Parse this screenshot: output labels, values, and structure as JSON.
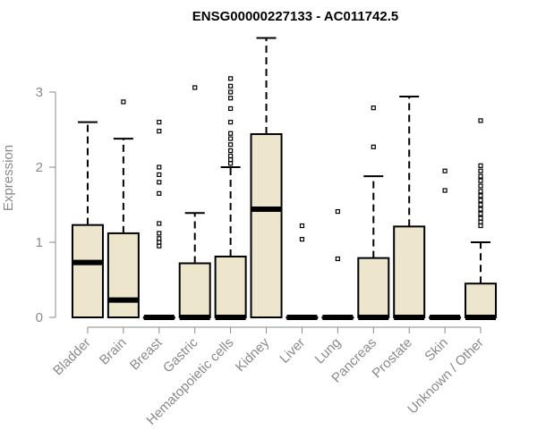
{
  "chart_data": {
    "type": "boxplot",
    "title": "ENSG00000227133 - AC011742.5",
    "ylabel": "Expression",
    "xlabel": "",
    "ylim": [
      0,
      3.8
    ],
    "yticks": [
      0,
      1,
      2,
      3
    ],
    "box_fill": "#ede6cd",
    "categories": [
      "Bladder",
      "Brain",
      "Breast",
      "Gastric",
      "Hematopoietic cells",
      "Kidney",
      "Liver",
      "Lung",
      "Pancreas",
      "Prostate",
      "Skin",
      "Unknown / Other"
    ],
    "boxes": [
      {
        "q1": 0,
        "median": 0.73,
        "q3": 1.23,
        "whisker_low": 0,
        "whisker_high": 2.6,
        "outliers": []
      },
      {
        "q1": 0,
        "median": 0.23,
        "q3": 1.12,
        "whisker_low": 0,
        "whisker_high": 2.38,
        "outliers": [
          2.87
        ]
      },
      {
        "q1": 0,
        "median": 0,
        "q3": 0,
        "whisker_low": 0,
        "whisker_high": 0,
        "outliers": [
          0.95,
          1.0,
          1.05,
          1.12,
          1.25,
          1.65,
          1.8,
          1.9,
          2.0,
          2.48,
          2.6
        ]
      },
      {
        "q1": 0,
        "median": 0,
        "q3": 0.72,
        "whisker_low": 0,
        "whisker_high": 1.39,
        "outliers": [
          3.06
        ]
      },
      {
        "q1": 0,
        "median": 0,
        "q3": 0.81,
        "whisker_low": 0,
        "whisker_high": 2.0,
        "outliers": [
          2.05,
          2.1,
          2.15,
          2.22,
          2.3,
          2.38,
          2.45,
          2.6,
          2.78,
          2.92,
          3.0,
          3.08,
          3.18
        ]
      },
      {
        "q1": 0,
        "median": 1.44,
        "q3": 2.44,
        "whisker_low": 0,
        "whisker_high": 3.72,
        "outliers": []
      },
      {
        "q1": 0,
        "median": 0,
        "q3": 0,
        "whisker_low": 0,
        "whisker_high": 0,
        "outliers": [
          1.04,
          1.22
        ]
      },
      {
        "q1": 0,
        "median": 0,
        "q3": 0,
        "whisker_low": 0,
        "whisker_high": 0,
        "outliers": [
          0.78,
          1.41
        ]
      },
      {
        "q1": 0,
        "median": 0,
        "q3": 0.79,
        "whisker_low": 0,
        "whisker_high": 1.88,
        "outliers": [
          2.27,
          2.79
        ]
      },
      {
        "q1": 0,
        "median": 0,
        "q3": 1.21,
        "whisker_low": 0,
        "whisker_high": 2.94,
        "outliers": []
      },
      {
        "q1": 0,
        "median": 0,
        "q3": 0,
        "whisker_low": 0,
        "whisker_high": 0,
        "outliers": [
          1.69,
          1.95
        ]
      },
      {
        "q1": 0,
        "median": 0,
        "q3": 0.45,
        "whisker_low": 0,
        "whisker_high": 1.0,
        "outliers": [
          1.22,
          1.27,
          1.32,
          1.38,
          1.44,
          1.5,
          1.56,
          1.62,
          1.68,
          1.75,
          1.82,
          1.88,
          1.95,
          2.02,
          2.62
        ]
      }
    ]
  }
}
